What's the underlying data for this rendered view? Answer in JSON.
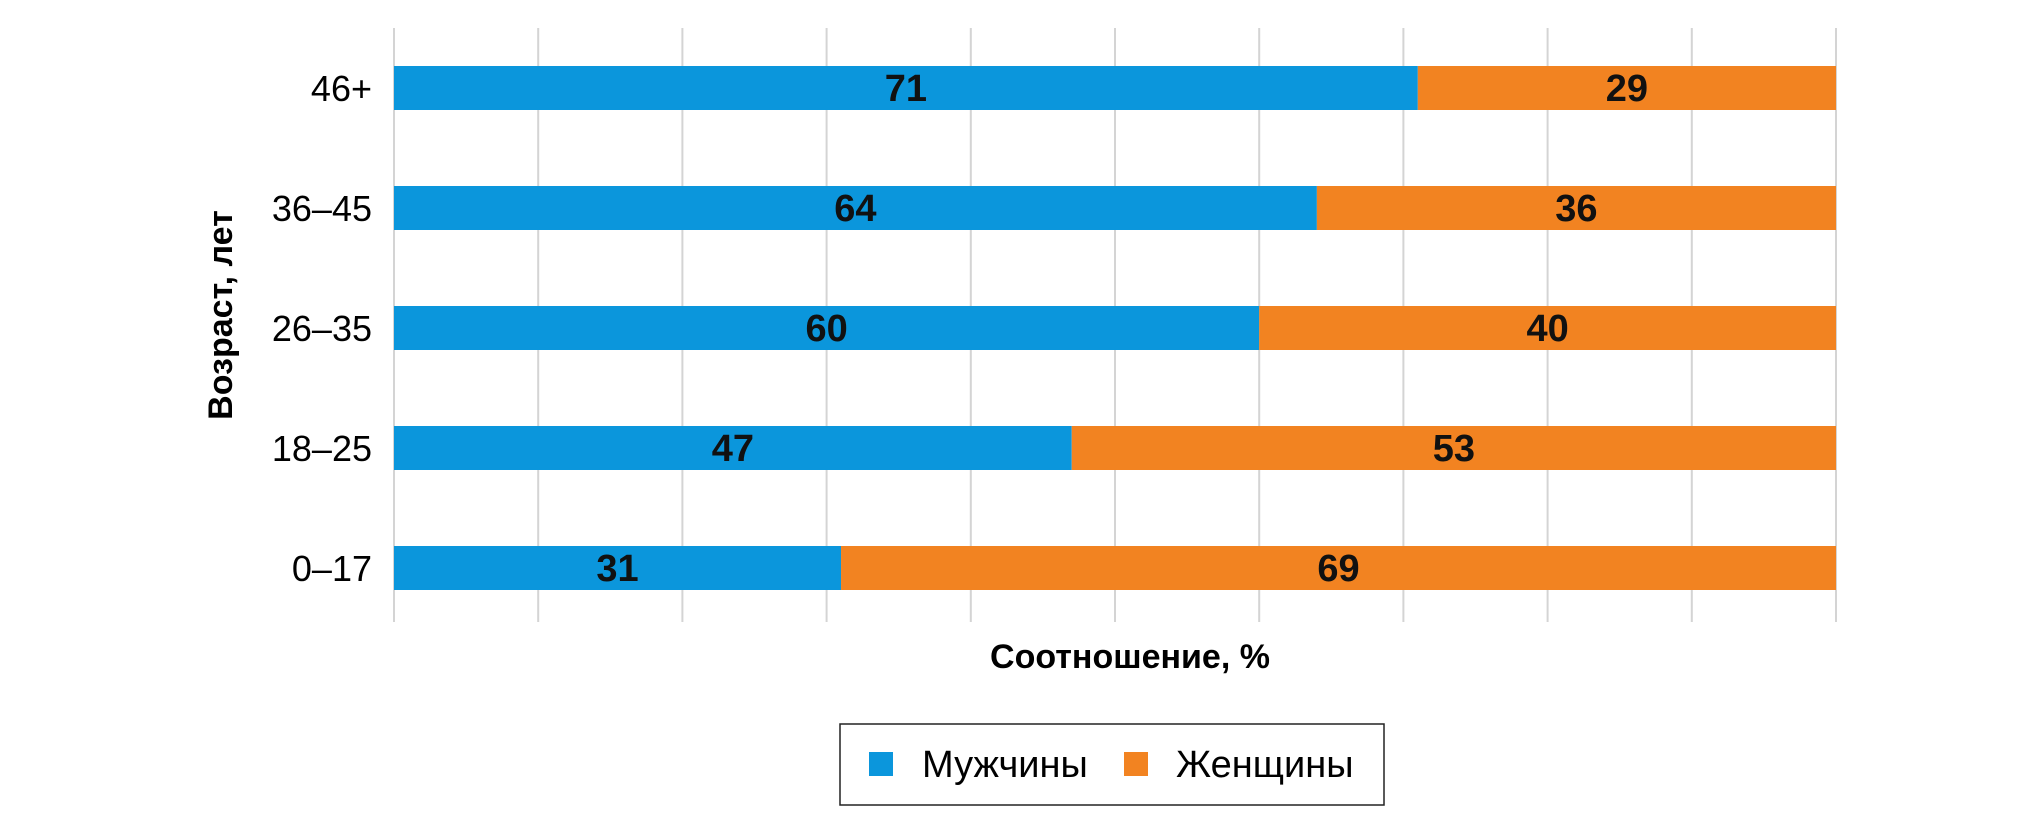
{
  "chart_data": {
    "type": "bar",
    "orientation": "horizontal",
    "stacked": true,
    "categories": [
      "46+",
      "36–45",
      "26–35",
      "18–25",
      "0–17"
    ],
    "series": [
      {
        "name": "Мужчины",
        "values": [
          71,
          64,
          60,
          47,
          31
        ],
        "color": "#0b96dc"
      },
      {
        "name": "Женщины",
        "values": [
          29,
          36,
          40,
          53,
          69
        ],
        "color": "#f28321"
      }
    ],
    "xlabel": "Соотношение, %",
    "ylabel": "Возраст, лет",
    "xlim": [
      0,
      100
    ],
    "grid": true,
    "gridline_step": 10,
    "legend_position": "bottom-center",
    "data_labels": true
  }
}
